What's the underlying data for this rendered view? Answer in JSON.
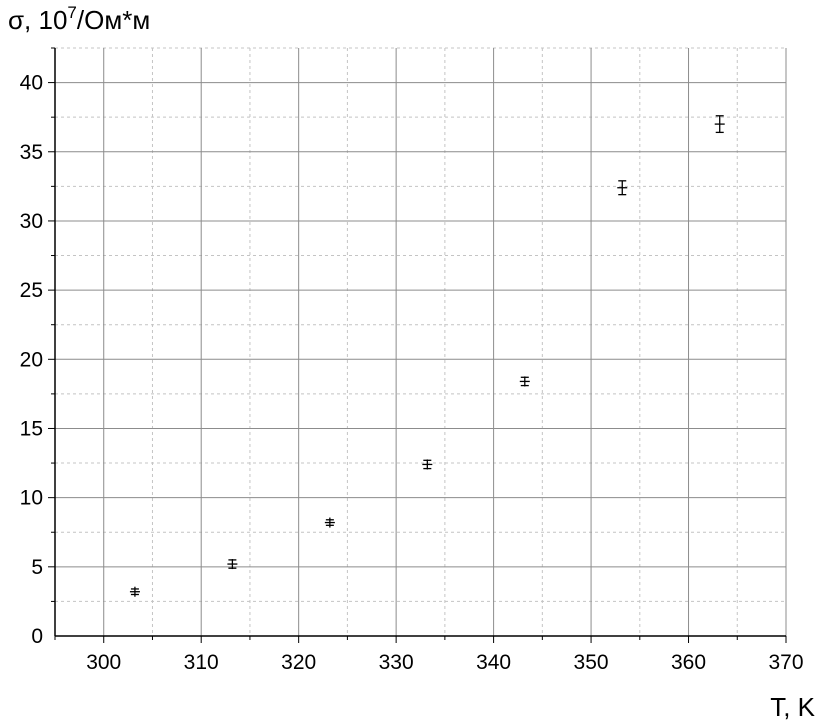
{
  "chart_data": {
    "type": "scatter",
    "title": "",
    "xlabel": "T, K",
    "ylabel": "σ, 10⁷/Ом*м",
    "ylabel_parts": {
      "base": "σ, 10",
      "exponent": "7",
      "unit": "/Ом*м"
    },
    "xlim": [
      295,
      370
    ],
    "ylim": [
      0,
      42.5
    ],
    "x_ticks": [
      300,
      310,
      320,
      330,
      340,
      350,
      360,
      370
    ],
    "y_ticks": [
      0,
      5,
      10,
      15,
      20,
      25,
      30,
      35,
      40
    ],
    "x_minor_step": 5,
    "y_minor_step": 2.5,
    "grid": true,
    "legend": "none",
    "series": [
      {
        "marker": "cross-with-errorbars",
        "color": "#000000",
        "points": [
          {
            "x": 303.2,
            "y": 3.2,
            "yerr": 0.2
          },
          {
            "x": 313.2,
            "y": 5.2,
            "yerr": 0.3
          },
          {
            "x": 323.2,
            "y": 8.2,
            "yerr": 0.2
          },
          {
            "x": 333.2,
            "y": 12.4,
            "yerr": 0.3
          },
          {
            "x": 343.2,
            "y": 18.4,
            "yerr": 0.3
          },
          {
            "x": 353.2,
            "y": 32.4,
            "yerr": 0.5
          },
          {
            "x": 363.2,
            "y": 37.0,
            "yerr": 0.6
          }
        ]
      }
    ]
  }
}
